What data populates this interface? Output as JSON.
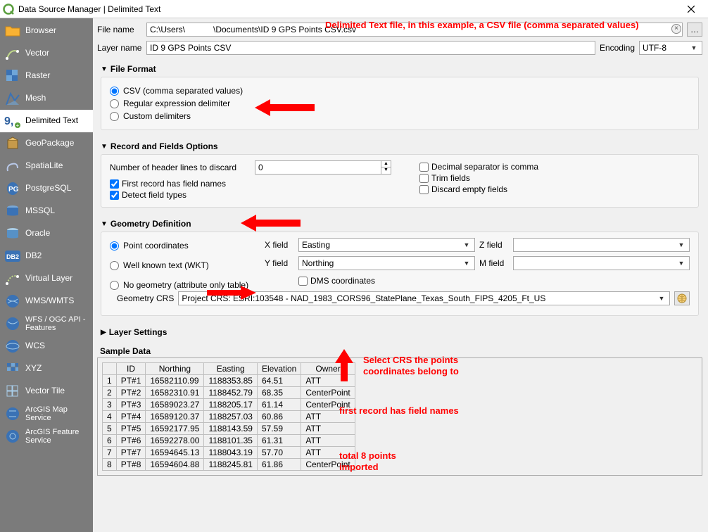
{
  "window": {
    "title": "Data Source Manager | Delimited Text"
  },
  "sidebar": {
    "items": [
      {
        "label": "Browser"
      },
      {
        "label": "Vector"
      },
      {
        "label": "Raster"
      },
      {
        "label": "Mesh"
      },
      {
        "label": "Delimited Text"
      },
      {
        "label": "GeoPackage"
      },
      {
        "label": "SpatiaLite"
      },
      {
        "label": "PostgreSQL"
      },
      {
        "label": "MSSQL"
      },
      {
        "label": "Oracle"
      },
      {
        "label": "DB2"
      },
      {
        "label": "Virtual Layer"
      },
      {
        "label": "WMS/WMTS"
      },
      {
        "label": "WFS / OGC API - Features"
      },
      {
        "label": "WCS"
      },
      {
        "label": "XYZ"
      },
      {
        "label": "Vector Tile"
      },
      {
        "label": "ArcGIS Map Service"
      },
      {
        "label": "ArcGIS Feature Service"
      }
    ],
    "selected_index": 4
  },
  "file": {
    "label": "File name",
    "path": "C:\\Users\\            \\Documents\\ID 9 GPS Points CSV.csv",
    "browse": "…",
    "layer_label": "Layer name",
    "layer_name": "ID 9 GPS Points CSV",
    "encoding_label": "Encoding",
    "encoding_value": "UTF-8"
  },
  "file_format": {
    "title": "File Format",
    "options": {
      "csv": "CSV (comma separated values)",
      "regex": "Regular expression delimiter",
      "custom": "Custom delimiters"
    },
    "selected": "csv"
  },
  "records": {
    "title": "Record and Fields Options",
    "discard_label": "Number of header lines to discard",
    "discard_value": "0",
    "first_record_label": "First record has field names",
    "first_record_checked": true,
    "detect_label": "Detect field types",
    "detect_checked": true,
    "decimal_label": "Decimal separator is comma",
    "decimal_checked": false,
    "trim_label": "Trim fields",
    "trim_checked": false,
    "discard_empty_label": "Discard empty fields",
    "discard_empty_checked": false
  },
  "geometry": {
    "title": "Geometry Definition",
    "options": {
      "point": "Point coordinates",
      "wkt": "Well known text (WKT)",
      "none": "No geometry (attribute only table)"
    },
    "selected": "point",
    "xfield_label": "X field",
    "xfield_value": "Easting",
    "yfield_label": "Y field",
    "yfield_value": "Northing",
    "zfield_label": "Z field",
    "zfield_value": "",
    "mfield_label": "M field",
    "mfield_value": "",
    "dms_label": "DMS coordinates",
    "dms_checked": false,
    "crs_label": "Geometry CRS",
    "crs_value": "Project CRS: ESRI:103548 - NAD_1983_CORS96_StatePlane_Texas_South_FIPS_4205_Ft_US"
  },
  "layer_settings": {
    "title": "Layer Settings"
  },
  "sample": {
    "title": "Sample Data",
    "columns": [
      "ID",
      "Northing",
      "Easting",
      "Elevation",
      "Owner"
    ],
    "rows": [
      [
        "PT#1",
        "16582110.99",
        "1188353.85",
        "64.51",
        "ATT"
      ],
      [
        "PT#2",
        "16582310.91",
        "1188452.79",
        "68.35",
        "CenterPoint"
      ],
      [
        "PT#3",
        "16589023.27",
        "1188205.17",
        "61.14",
        "CenterPoint"
      ],
      [
        "PT#4",
        "16589120.37",
        "1188257.03",
        "60.86",
        "ATT"
      ],
      [
        "PT#5",
        "16592177.95",
        "1188143.59",
        "57.59",
        "ATT"
      ],
      [
        "PT#6",
        "16592278.00",
        "1188101.35",
        "61.31",
        "ATT"
      ],
      [
        "PT#7",
        "16594645.13",
        "1188043.19",
        "57.70",
        "ATT"
      ],
      [
        "PT#8",
        "16594604.88",
        "1188245.81",
        "61.86",
        "CenterPoint"
      ]
    ]
  },
  "annotations": {
    "a1": "Delimited Text file, in this example, a CSV file (comma separated values)",
    "a2": "Select CRS the points coordinates belong to",
    "a3": "first record has field names",
    "a4": "total 8 points imported"
  },
  "colors": {
    "sidebar_bg": "#7b7b7b",
    "accent_red": "#ff0000",
    "panel_bg": "#f0f0f0",
    "group_bg": "#f7f7f7",
    "border": "#a9a9a9"
  }
}
